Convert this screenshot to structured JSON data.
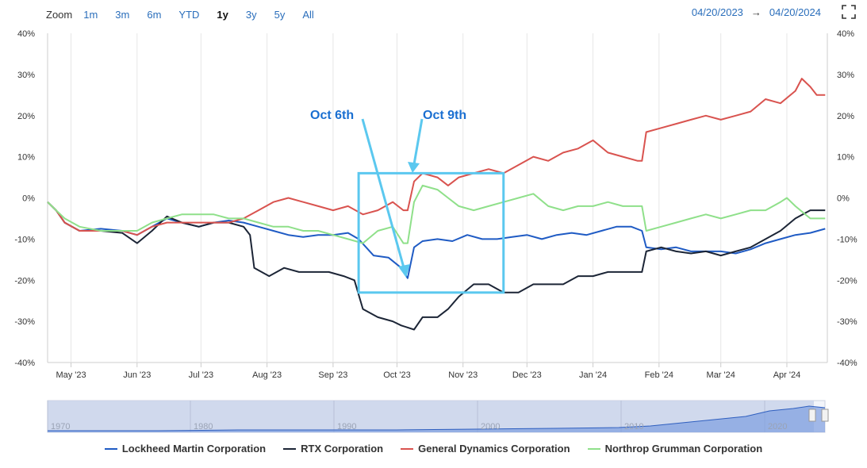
{
  "toolbar": {
    "zoom_label": "Zoom",
    "buttons": [
      "1m",
      "3m",
      "6m",
      "YTD",
      "1y",
      "3y",
      "5y",
      "All"
    ],
    "active": "1y",
    "from_date": "04/20/2023",
    "arrow": "→",
    "to_date": "04/20/2024"
  },
  "annotations": [
    {
      "label": "Oct 6th",
      "color": "#1a6fd1"
    },
    {
      "label": "Oct 9th",
      "color": "#1a6fd1"
    }
  ],
  "navigator": {
    "years": [
      "1970",
      "1980",
      "1990",
      "2000",
      "2010",
      "2020"
    ]
  },
  "chart_data": {
    "type": "line",
    "title": "",
    "xlabel": "",
    "ylabel": "",
    "x_tick_labels": [
      "May '23",
      "Jun '23",
      "Jul '23",
      "Aug '23",
      "Sep '23",
      "Oct '23",
      "Nov '23",
      "Dec '23",
      "Jan '24",
      "Feb '24",
      "Mar '24",
      "Apr '24"
    ],
    "y_ticks": [
      40,
      30,
      20,
      10,
      0,
      -10,
      -20,
      -30,
      -40
    ],
    "y_tick_labels": [
      "40%",
      "30%",
      "20%",
      "10%",
      "0%",
      "-10%",
      "-20%",
      "-30%",
      "-40%"
    ],
    "ylim": [
      -40,
      40
    ],
    "xlim": [
      "2023-04-20",
      "2024-04-20"
    ],
    "grid": "vertical",
    "legend_position": "bottom",
    "highlight_box": {
      "x_from": "2023-09-13",
      "x_to": "2023-11-20",
      "y_from": -23,
      "y_to": 6
    },
    "series": [
      {
        "name": "Lockheed Martin Corporation",
        "color": "#1f5bc4",
        "points": [
          [
            "2023-04-20",
            -1
          ],
          [
            "2023-04-24",
            -3
          ],
          [
            "2023-04-28",
            -6
          ],
          [
            "2023-05-05",
            -8
          ],
          [
            "2023-05-15",
            -7.5
          ],
          [
            "2023-05-25",
            -8
          ],
          [
            "2023-06-01",
            -9
          ],
          [
            "2023-06-08",
            -7
          ],
          [
            "2023-06-15",
            -5
          ],
          [
            "2023-06-22",
            -6
          ],
          [
            "2023-06-30",
            -7
          ],
          [
            "2023-07-07",
            -6
          ],
          [
            "2023-07-14",
            -5.5
          ],
          [
            "2023-07-21",
            -6
          ],
          [
            "2023-07-28",
            -7
          ],
          [
            "2023-08-04",
            -8
          ],
          [
            "2023-08-11",
            -9
          ],
          [
            "2023-08-18",
            -9.5
          ],
          [
            "2023-08-25",
            -9
          ],
          [
            "2023-09-01",
            -9
          ],
          [
            "2023-09-08",
            -8.5
          ],
          [
            "2023-09-13",
            -10
          ],
          [
            "2023-09-20",
            -14
          ],
          [
            "2023-09-27",
            -14.5
          ],
          [
            "2023-10-03",
            -17
          ],
          [
            "2023-10-06",
            -19.5
          ],
          [
            "2023-10-09",
            -12
          ],
          [
            "2023-10-13",
            -10.5
          ],
          [
            "2023-10-20",
            -10
          ],
          [
            "2023-10-27",
            -10.5
          ],
          [
            "2023-11-03",
            -9
          ],
          [
            "2023-11-10",
            -10
          ],
          [
            "2023-11-17",
            -10
          ],
          [
            "2023-11-24",
            -9.5
          ],
          [
            "2023-12-01",
            -9
          ],
          [
            "2023-12-08",
            -10
          ],
          [
            "2023-12-15",
            -9
          ],
          [
            "2023-12-22",
            -8.5
          ],
          [
            "2023-12-29",
            -9
          ],
          [
            "2024-01-05",
            -8
          ],
          [
            "2024-01-12",
            -7
          ],
          [
            "2024-01-19",
            -7
          ],
          [
            "2024-01-24",
            -8
          ],
          [
            "2024-01-26",
            -12
          ],
          [
            "2024-02-02",
            -12.5
          ],
          [
            "2024-02-09",
            -12
          ],
          [
            "2024-02-16",
            -13
          ],
          [
            "2024-02-23",
            -13
          ],
          [
            "2024-03-01",
            -13
          ],
          [
            "2024-03-08",
            -13.5
          ],
          [
            "2024-03-15",
            -12.5
          ],
          [
            "2024-03-22",
            -11
          ],
          [
            "2024-03-29",
            -10
          ],
          [
            "2024-04-05",
            -9
          ],
          [
            "2024-04-12",
            -8.5
          ],
          [
            "2024-04-19",
            -7.5
          ]
        ]
      },
      {
        "name": "RTX Corporation",
        "color": "#1c2536",
        "points": [
          [
            "2023-04-20",
            -1
          ],
          [
            "2023-04-24",
            -3
          ],
          [
            "2023-04-28",
            -6
          ],
          [
            "2023-05-05",
            -8
          ],
          [
            "2023-05-15",
            -8
          ],
          [
            "2023-05-25",
            -8.5
          ],
          [
            "2023-06-01",
            -11
          ],
          [
            "2023-06-08",
            -8
          ],
          [
            "2023-06-15",
            -4.5
          ],
          [
            "2023-06-22",
            -6
          ],
          [
            "2023-06-30",
            -7
          ],
          [
            "2023-07-07",
            -6
          ],
          [
            "2023-07-14",
            -6
          ],
          [
            "2023-07-21",
            -7
          ],
          [
            "2023-07-24",
            -9
          ],
          [
            "2023-07-26",
            -17
          ],
          [
            "2023-08-02",
            -19
          ],
          [
            "2023-08-09",
            -17
          ],
          [
            "2023-08-16",
            -18
          ],
          [
            "2023-08-23",
            -18
          ],
          [
            "2023-08-30",
            -18
          ],
          [
            "2023-09-06",
            -19
          ],
          [
            "2023-09-11",
            -20
          ],
          [
            "2023-09-15",
            -27
          ],
          [
            "2023-09-22",
            -29
          ],
          [
            "2023-09-29",
            -30
          ],
          [
            "2023-10-03",
            -31
          ],
          [
            "2023-10-09",
            -32
          ],
          [
            "2023-10-13",
            -29
          ],
          [
            "2023-10-20",
            -29
          ],
          [
            "2023-10-25",
            -27
          ],
          [
            "2023-10-30",
            -24
          ],
          [
            "2023-11-06",
            -21
          ],
          [
            "2023-11-13",
            -21
          ],
          [
            "2023-11-20",
            -23
          ],
          [
            "2023-11-27",
            -23
          ],
          [
            "2023-12-04",
            -21
          ],
          [
            "2023-12-11",
            -21
          ],
          [
            "2023-12-18",
            -21
          ],
          [
            "2023-12-25",
            -19
          ],
          [
            "2024-01-01",
            -19
          ],
          [
            "2024-01-08",
            -18
          ],
          [
            "2024-01-15",
            -18
          ],
          [
            "2024-01-24",
            -18
          ],
          [
            "2024-01-26",
            -13
          ],
          [
            "2024-02-02",
            -12
          ],
          [
            "2024-02-09",
            -13
          ],
          [
            "2024-02-16",
            -13.5
          ],
          [
            "2024-02-23",
            -13
          ],
          [
            "2024-03-01",
            -14
          ],
          [
            "2024-03-08",
            -13
          ],
          [
            "2024-03-15",
            -12
          ],
          [
            "2024-03-22",
            -10
          ],
          [
            "2024-03-29",
            -8
          ],
          [
            "2024-04-05",
            -5
          ],
          [
            "2024-04-12",
            -3
          ],
          [
            "2024-04-19",
            -3
          ]
        ]
      },
      {
        "name": "General Dynamics Corporation",
        "color": "#d9534f",
        "points": [
          [
            "2023-04-20",
            -1
          ],
          [
            "2023-04-24",
            -3
          ],
          [
            "2023-04-28",
            -6
          ],
          [
            "2023-05-05",
            -8
          ],
          [
            "2023-05-15",
            -8
          ],
          [
            "2023-05-25",
            -8
          ],
          [
            "2023-06-01",
            -9
          ],
          [
            "2023-06-08",
            -7
          ],
          [
            "2023-06-15",
            -6
          ],
          [
            "2023-06-22",
            -6
          ],
          [
            "2023-06-30",
            -6
          ],
          [
            "2023-07-07",
            -6
          ],
          [
            "2023-07-14",
            -6
          ],
          [
            "2023-07-21",
            -5
          ],
          [
            "2023-07-28",
            -3
          ],
          [
            "2023-08-04",
            -1
          ],
          [
            "2023-08-11",
            0
          ],
          [
            "2023-08-18",
            -1
          ],
          [
            "2023-08-25",
            -2
          ],
          [
            "2023-09-01",
            -3
          ],
          [
            "2023-09-08",
            -2
          ],
          [
            "2023-09-15",
            -4
          ],
          [
            "2023-09-22",
            -3
          ],
          [
            "2023-09-29",
            -1
          ],
          [
            "2023-10-04",
            -3
          ],
          [
            "2023-10-06",
            -3
          ],
          [
            "2023-10-09",
            4
          ],
          [
            "2023-10-13",
            6
          ],
          [
            "2023-10-20",
            5
          ],
          [
            "2023-10-25",
            3
          ],
          [
            "2023-10-30",
            5
          ],
          [
            "2023-11-06",
            6
          ],
          [
            "2023-11-13",
            7
          ],
          [
            "2023-11-20",
            6
          ],
          [
            "2023-11-27",
            8
          ],
          [
            "2023-12-04",
            10
          ],
          [
            "2023-12-11",
            9
          ],
          [
            "2023-12-18",
            11
          ],
          [
            "2023-12-25",
            12
          ],
          [
            "2024-01-01",
            14
          ],
          [
            "2024-01-08",
            11
          ],
          [
            "2024-01-15",
            10
          ],
          [
            "2024-01-22",
            9
          ],
          [
            "2024-01-24",
            9
          ],
          [
            "2024-01-26",
            16
          ],
          [
            "2024-02-02",
            17
          ],
          [
            "2024-02-09",
            18
          ],
          [
            "2024-02-16",
            19
          ],
          [
            "2024-02-23",
            20
          ],
          [
            "2024-03-01",
            19
          ],
          [
            "2024-03-08",
            20
          ],
          [
            "2024-03-15",
            21
          ],
          [
            "2024-03-22",
            24
          ],
          [
            "2024-03-29",
            23
          ],
          [
            "2024-04-05",
            26
          ],
          [
            "2024-04-08",
            29
          ],
          [
            "2024-04-12",
            27
          ],
          [
            "2024-04-15",
            25
          ],
          [
            "2024-04-19",
            25
          ]
        ]
      },
      {
        "name": "Northrop Grumman Corporation",
        "color": "#8fe08a",
        "points": [
          [
            "2023-04-20",
            -1
          ],
          [
            "2023-04-24",
            -3
          ],
          [
            "2023-04-28",
            -5
          ],
          [
            "2023-05-05",
            -7
          ],
          [
            "2023-05-15",
            -8
          ],
          [
            "2023-05-25",
            -8
          ],
          [
            "2023-06-01",
            -8
          ],
          [
            "2023-06-08",
            -6
          ],
          [
            "2023-06-15",
            -5
          ],
          [
            "2023-06-22",
            -4
          ],
          [
            "2023-06-30",
            -4
          ],
          [
            "2023-07-07",
            -4
          ],
          [
            "2023-07-14",
            -5
          ],
          [
            "2023-07-21",
            -5
          ],
          [
            "2023-07-28",
            -6
          ],
          [
            "2023-08-04",
            -7
          ],
          [
            "2023-08-11",
            -7
          ],
          [
            "2023-08-18",
            -8
          ],
          [
            "2023-08-25",
            -8
          ],
          [
            "2023-09-01",
            -9
          ],
          [
            "2023-09-08",
            -10
          ],
          [
            "2023-09-15",
            -11
          ],
          [
            "2023-09-22",
            -8
          ],
          [
            "2023-09-29",
            -7
          ],
          [
            "2023-10-04",
            -11
          ],
          [
            "2023-10-06",
            -11
          ],
          [
            "2023-10-09",
            -1
          ],
          [
            "2023-10-13",
            3
          ],
          [
            "2023-10-20",
            2
          ],
          [
            "2023-10-25",
            0
          ],
          [
            "2023-10-30",
            -2
          ],
          [
            "2023-11-06",
            -3
          ],
          [
            "2023-11-13",
            -2
          ],
          [
            "2023-11-20",
            -1
          ],
          [
            "2023-11-27",
            0
          ],
          [
            "2023-12-04",
            1
          ],
          [
            "2023-12-11",
            -2
          ],
          [
            "2023-12-18",
            -3
          ],
          [
            "2023-12-25",
            -2
          ],
          [
            "2024-01-01",
            -2
          ],
          [
            "2024-01-08",
            -1
          ],
          [
            "2024-01-15",
            -2
          ],
          [
            "2024-01-24",
            -2
          ],
          [
            "2024-01-26",
            -8
          ],
          [
            "2024-02-02",
            -7
          ],
          [
            "2024-02-09",
            -6
          ],
          [
            "2024-02-16",
            -5
          ],
          [
            "2024-02-23",
            -4
          ],
          [
            "2024-03-01",
            -5
          ],
          [
            "2024-03-08",
            -4
          ],
          [
            "2024-03-15",
            -3
          ],
          [
            "2024-03-22",
            -3
          ],
          [
            "2024-03-29",
            -1
          ],
          [
            "2024-04-01",
            0
          ],
          [
            "2024-04-05",
            -2
          ],
          [
            "2024-04-12",
            -5
          ],
          [
            "2024-04-19",
            -5
          ]
        ]
      }
    ]
  }
}
